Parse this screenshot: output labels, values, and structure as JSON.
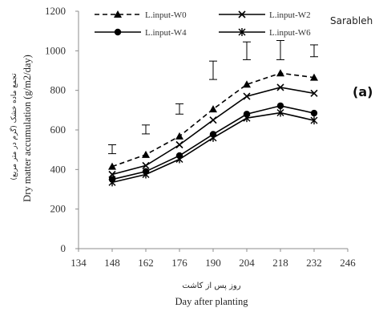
{
  "chart_data": {
    "type": "line",
    "x": [
      148,
      162,
      176,
      190,
      204,
      218,
      232
    ],
    "xlim": [
      134,
      246
    ],
    "xticks": [
      134,
      148,
      162,
      176,
      190,
      204,
      218,
      232,
      246
    ],
    "ylim": [
      0,
      1200
    ],
    "yticks": [
      0,
      200,
      400,
      600,
      800,
      1000,
      1200
    ],
    "xlabel_fa": "روز پس از کاشت",
    "xlabel": "Day after planting",
    "ylabel": "Dry matter accumulation (g/m2/day)",
    "ylabel_fa": "تجمع ماده خشک (گرم در متر مربع)",
    "location": "Sarableh",
    "panel_label": "(a)",
    "grid": false,
    "legend_position": "top",
    "series": [
      {
        "name": "L.input-W0",
        "marker": "triangle",
        "dash": "dashed",
        "values": [
          415,
          475,
          568,
          705,
          830,
          887,
          865
        ]
      },
      {
        "name": "L.input-W2",
        "marker": "x",
        "dash": "solid",
        "values": [
          375,
          420,
          525,
          650,
          770,
          815,
          785
        ]
      },
      {
        "name": "L.input-W4",
        "marker": "circle",
        "dash": "solid",
        "values": [
          350,
          390,
          470,
          578,
          680,
          722,
          685
        ]
      },
      {
        "name": "L.input-W6",
        "marker": "star",
        "dash": "solid",
        "values": [
          335,
          375,
          452,
          560,
          660,
          687,
          648
        ]
      }
    ],
    "error_bars": {
      "x": [
        148,
        162,
        176,
        190,
        204,
        218,
        232
      ],
      "low": [
        480,
        580,
        680,
        855,
        955,
        955,
        970
      ],
      "high": [
        525,
        625,
        732,
        948,
        1045,
        1052,
        1030
      ]
    }
  }
}
